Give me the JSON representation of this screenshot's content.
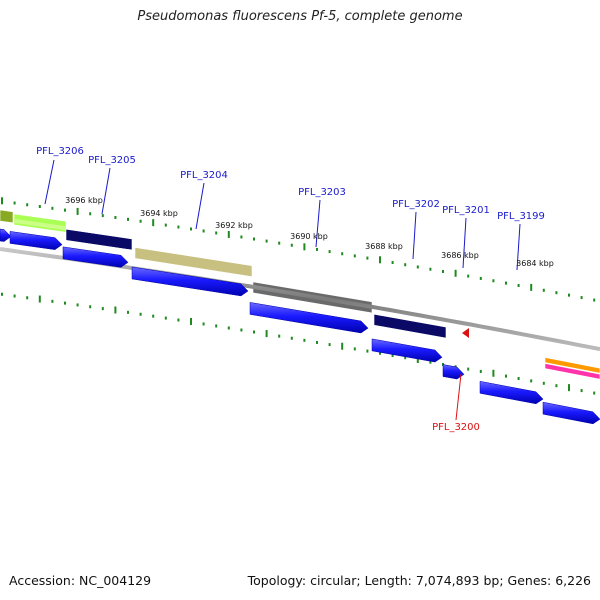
{
  "title": "Pseudomonas fluorescens Pf-5, complete genome",
  "footer": {
    "accession": "Accession: NC_004129",
    "summary": "Topology: circular; Length: 7,074,893 bp; Genes: 6,226"
  },
  "colors": {
    "cds_blue": "#1010ee",
    "backbone": "#888888",
    "tick_green": "#1f8a1f",
    "label_blue": "#1a1acc",
    "label_red": "#dd1111"
  },
  "scale_labels": [
    "3696 kbp",
    "3694 kbp",
    "3692 kbp",
    "3690 kbp",
    "3688 kbp",
    "3686 kbp",
    "3684 kbp"
  ],
  "gene_labels": [
    {
      "name": "PFL_3206",
      "color": "blue"
    },
    {
      "name": "PFL_3205",
      "color": "blue"
    },
    {
      "name": "PFL_3204",
      "color": "blue"
    },
    {
      "name": "PFL_3203",
      "color": "blue"
    },
    {
      "name": "PFL_3202",
      "color": "blue"
    },
    {
      "name": "PFL_3201",
      "color": "blue"
    },
    {
      "name": "PFL_3199",
      "color": "blue"
    },
    {
      "name": "PFL_3200",
      "color": "red"
    }
  ],
  "cog_colors": [
    "#88aa22",
    "#aaff55",
    "#0a0a66",
    "#c8c080",
    "#6a6a6a",
    "#0a0a66",
    "#ff9900",
    "#ff33aa"
  ]
}
